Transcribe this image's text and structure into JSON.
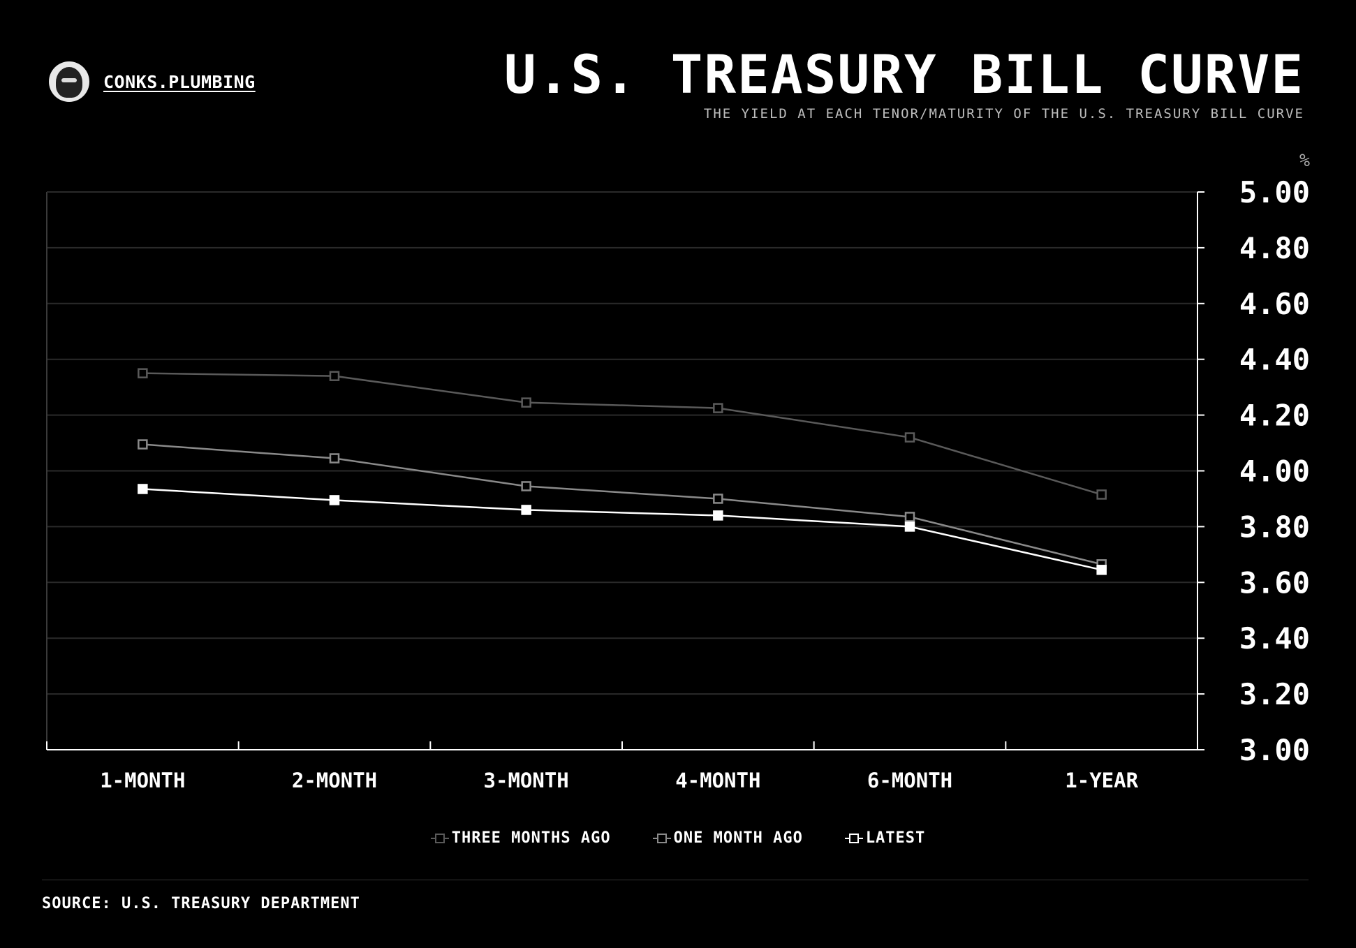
{
  "header": {
    "brand": "CONKS.PLUMBING",
    "title": "U.S. TREASURY BILL CURVE",
    "subtitle": "THE YIELD AT EACH TENOR/MATURITY OF THE U.S. TREASURY BILL CURVE"
  },
  "footer": {
    "source": "SOURCE: U.S. TREASURY DEPARTMENT"
  },
  "icons": {
    "avatar": "hooded-figure-avatar"
  },
  "chart_data": {
    "type": "line",
    "title": "U.S. TREASURY BILL CURVE",
    "subtitle": "THE YIELD AT EACH TENOR/MATURITY OF THE U.S. TREASURY BILL CURVE",
    "unit": "%",
    "categories": [
      "1-MONTH",
      "2-MONTH",
      "3-MONTH",
      "4-MONTH",
      "6-MONTH",
      "1-YEAR"
    ],
    "yticks": [
      "5.00",
      "4.80",
      "4.60",
      "4.40",
      "4.20",
      "4.00",
      "3.80",
      "3.60",
      "3.40",
      "3.20",
      "3.00"
    ],
    "ylim": [
      3.0,
      5.0
    ],
    "yaxis_position": "right",
    "grid": true,
    "legend_position": "bottom-center",
    "series": [
      {
        "name": "THREE MONTHS AGO",
        "values": [
          4.35,
          4.34,
          4.245,
          4.225,
          4.12,
          3.915
        ],
        "color": "#5a5a5a",
        "filled": false
      },
      {
        "name": "ONE MONTH AGO",
        "values": [
          4.095,
          4.045,
          3.945,
          3.9,
          3.835,
          3.665
        ],
        "color": "#8a8a8a",
        "filled": false
      },
      {
        "name": "LATEST",
        "values": [
          3.935,
          3.895,
          3.86,
          3.84,
          3.8,
          3.645
        ],
        "color": "#ffffff",
        "filled": true
      }
    ]
  }
}
